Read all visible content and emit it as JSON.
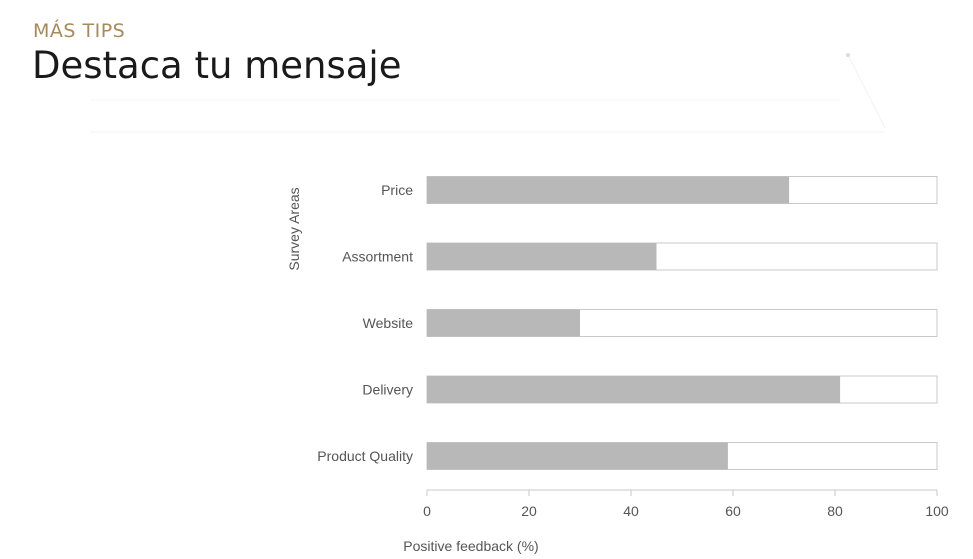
{
  "header": {
    "kicker": "MÁS TIPS",
    "title": "Destaca tu mensaje"
  },
  "chart_data": {
    "type": "bar",
    "orientation": "horizontal",
    "stacked_to_total": true,
    "categories": [
      "Price",
      "Assortment",
      "Website",
      "Delivery",
      "Product Quality"
    ],
    "values": [
      71,
      45,
      30,
      81,
      59
    ],
    "xlabel": "Positive feedback (%)",
    "ylabel": "Survey Areas",
    "xlim": [
      0,
      100
    ],
    "xticks": [
      0,
      20,
      40,
      60,
      80,
      100
    ],
    "grid": false,
    "legend": "none",
    "colors": {
      "bar": "#b8b8b8",
      "remainder": "#ffffff",
      "remainder_border": "#c8c8c8",
      "axis": "#c8c8c8",
      "text": "#555555"
    }
  }
}
